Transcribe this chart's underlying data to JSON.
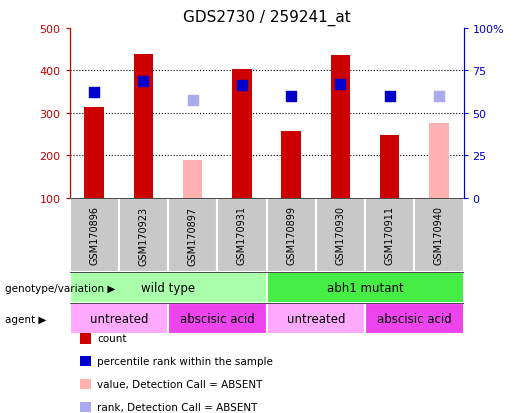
{
  "title": "GDS2730 / 259241_at",
  "samples": [
    "GSM170896",
    "GSM170923",
    "GSM170897",
    "GSM170931",
    "GSM170899",
    "GSM170930",
    "GSM170911",
    "GSM170940"
  ],
  "count_values": [
    313,
    438,
    null,
    403,
    257,
    436,
    248,
    null
  ],
  "count_absent_values": [
    null,
    null,
    190,
    null,
    null,
    null,
    null,
    275
  ],
  "percentile_rank": [
    350,
    375,
    null,
    365,
    340,
    368,
    340,
    null
  ],
  "percentile_rank_absent": [
    null,
    null,
    330,
    null,
    null,
    null,
    null,
    340
  ],
  "ylim_left": [
    100,
    500
  ],
  "ylim_right": [
    0,
    100
  ],
  "yticks_left": [
    100,
    200,
    300,
    400,
    500
  ],
  "yticks_right": [
    0,
    25,
    50,
    75,
    100
  ],
  "ytick_labels_right": [
    "0",
    "25",
    "50",
    "75",
    "100%"
  ],
  "bar_color": "#cc0000",
  "bar_absent_color": "#ffb0b0",
  "dot_color": "#0000cc",
  "dot_absent_color": "#aaaaee",
  "dot_size": 55,
  "genotype_groups": [
    {
      "label": "wild type",
      "span": [
        0,
        4
      ],
      "color": "#aaffaa"
    },
    {
      "label": "abh1 mutant",
      "span": [
        4,
        8
      ],
      "color": "#44ee44"
    }
  ],
  "agent_groups": [
    {
      "label": "untreated",
      "span": [
        0,
        2
      ],
      "color": "#ffaaff"
    },
    {
      "label": "abscisic acid",
      "span": [
        2,
        4
      ],
      "color": "#ee44ee"
    },
    {
      "label": "untreated",
      "span": [
        4,
        6
      ],
      "color": "#ffaaff"
    },
    {
      "label": "abscisic acid",
      "span": [
        6,
        8
      ],
      "color": "#ee44ee"
    }
  ],
  "legend_items": [
    {
      "label": "count",
      "color": "#cc0000"
    },
    {
      "label": "percentile rank within the sample",
      "color": "#0000cc"
    },
    {
      "label": "value, Detection Call = ABSENT",
      "color": "#ffb0b0"
    },
    {
      "label": "rank, Detection Call = ABSENT",
      "color": "#aaaaee"
    }
  ],
  "genotype_label": "genotype/variation",
  "agent_label": "agent",
  "bar_width": 0.4,
  "axis_color_left": "#cc0000",
  "axis_color_right": "#0000cc",
  "gray_color": "#c8c8c8"
}
